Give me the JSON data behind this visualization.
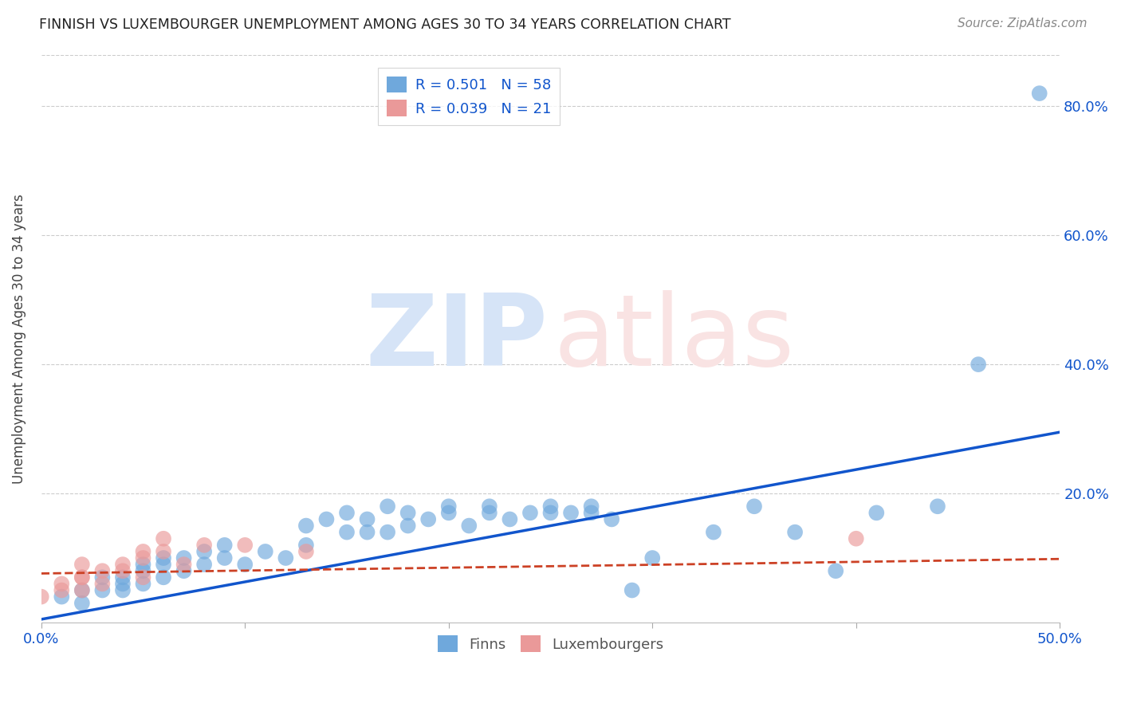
{
  "title": "FINNISH VS LUXEMBOURGER UNEMPLOYMENT AMONG AGES 30 TO 34 YEARS CORRELATION CHART",
  "source": "Source: ZipAtlas.com",
  "ylabel": "Unemployment Among Ages 30 to 34 years",
  "xlim": [
    0.0,
    0.5
  ],
  "ylim": [
    0.0,
    0.88
  ],
  "xticks": [
    0.0,
    0.1,
    0.2,
    0.3,
    0.4,
    0.5
  ],
  "yticks": [
    0.0,
    0.2,
    0.4,
    0.6,
    0.8
  ],
  "finn_R": 0.501,
  "finn_N": 58,
  "lux_R": 0.039,
  "lux_N": 21,
  "finn_color": "#6fa8dc",
  "lux_color": "#ea9999",
  "finn_line_color": "#1155cc",
  "lux_line_color": "#cc4125",
  "tick_color_blue": "#1155cc",
  "grid_color": "#cccccc",
  "legend_color": "#1155cc",
  "finn_scatter_x": [
    0.01,
    0.02,
    0.02,
    0.03,
    0.03,
    0.04,
    0.04,
    0.04,
    0.05,
    0.05,
    0.05,
    0.06,
    0.06,
    0.06,
    0.07,
    0.07,
    0.08,
    0.08,
    0.09,
    0.09,
    0.1,
    0.11,
    0.12,
    0.13,
    0.13,
    0.14,
    0.15,
    0.15,
    0.16,
    0.16,
    0.17,
    0.17,
    0.18,
    0.18,
    0.19,
    0.2,
    0.2,
    0.21,
    0.22,
    0.22,
    0.23,
    0.24,
    0.25,
    0.25,
    0.26,
    0.27,
    0.27,
    0.28,
    0.29,
    0.3,
    0.33,
    0.35,
    0.37,
    0.39,
    0.41,
    0.44,
    0.46,
    0.49
  ],
  "finn_scatter_y": [
    0.04,
    0.03,
    0.05,
    0.07,
    0.05,
    0.05,
    0.07,
    0.06,
    0.06,
    0.08,
    0.09,
    0.07,
    0.09,
    0.1,
    0.08,
    0.1,
    0.09,
    0.11,
    0.1,
    0.12,
    0.09,
    0.11,
    0.1,
    0.12,
    0.15,
    0.16,
    0.14,
    0.17,
    0.16,
    0.14,
    0.14,
    0.18,
    0.15,
    0.17,
    0.16,
    0.17,
    0.18,
    0.15,
    0.17,
    0.18,
    0.16,
    0.17,
    0.17,
    0.18,
    0.17,
    0.17,
    0.18,
    0.16,
    0.05,
    0.1,
    0.14,
    0.18,
    0.14,
    0.08,
    0.17,
    0.18,
    0.4,
    0.82
  ],
  "lux_scatter_x": [
    0.0,
    0.01,
    0.01,
    0.02,
    0.02,
    0.02,
    0.02,
    0.03,
    0.03,
    0.04,
    0.04,
    0.05,
    0.05,
    0.05,
    0.06,
    0.06,
    0.07,
    0.08,
    0.1,
    0.13,
    0.4
  ],
  "lux_scatter_y": [
    0.04,
    0.05,
    0.06,
    0.05,
    0.07,
    0.09,
    0.07,
    0.06,
    0.08,
    0.08,
    0.09,
    0.07,
    0.11,
    0.1,
    0.13,
    0.11,
    0.09,
    0.12,
    0.12,
    0.11,
    0.13
  ],
  "finn_slope": 0.58,
  "finn_intercept": 0.005,
  "lux_slope": 0.045,
  "lux_intercept": 0.076
}
